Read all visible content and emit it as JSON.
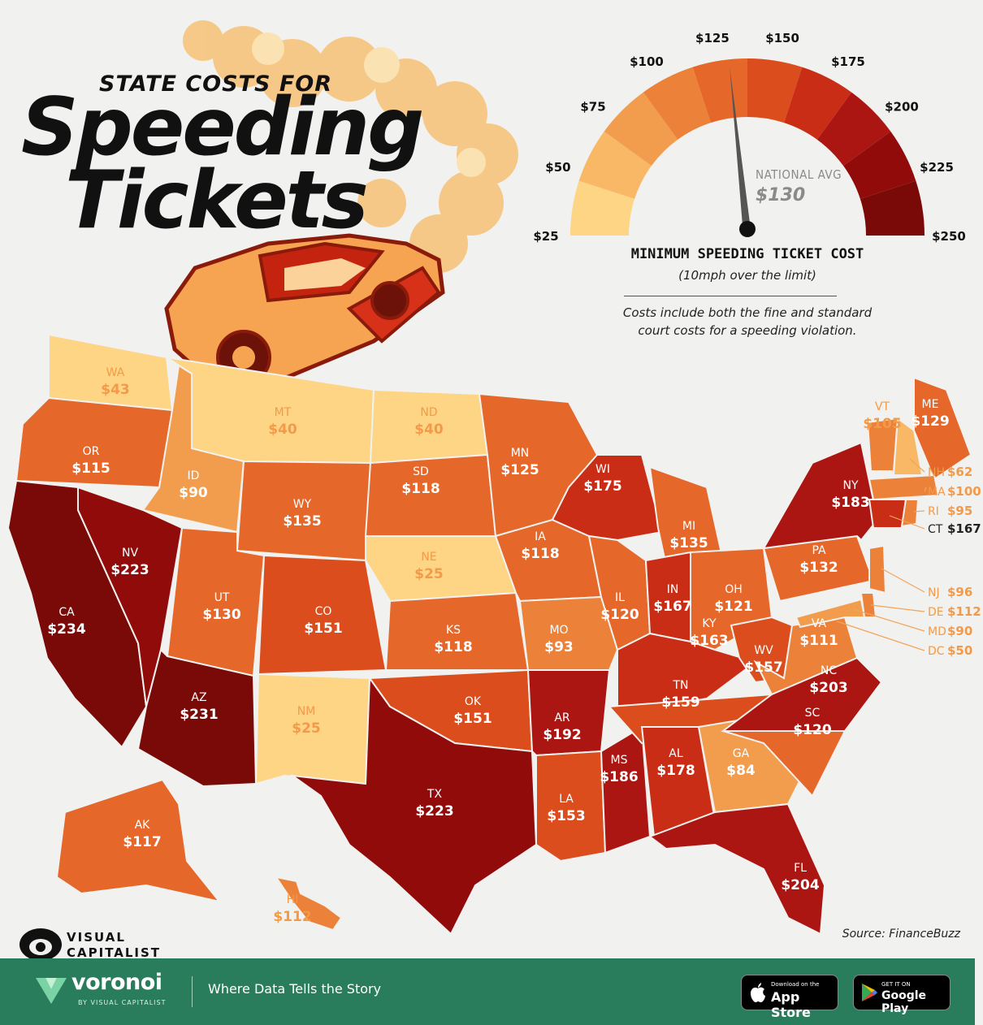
{
  "header": {
    "kicker": "STATE COSTS FOR",
    "title_line1": "Speeding",
    "title_line2": "Tickets"
  },
  "gauge": {
    "title": "MINIMUM SPEEDING TICKET COST",
    "subtitle": "(10mph over the limit)",
    "note_line1": "Costs include both the fine and standard",
    "note_line2": "court costs for a speeding violation.",
    "national_avg_label": "NATIONAL AVG",
    "national_avg_value": "$130",
    "national_avg": 130,
    "min": 25,
    "max": 250,
    "ticks": [
      "$25",
      "$50",
      "$75",
      "$100",
      "$125",
      "$150",
      "$175",
      "$200",
      "$225",
      "$250"
    ],
    "colors": [
      "#fdd585",
      "#f8b865",
      "#f29d4d",
      "#ec813a",
      "#e5672a",
      "#db4d1d",
      "#c92d16",
      "#ac1612",
      "#920b0b",
      "#7a0a07"
    ]
  },
  "chart_data": {
    "type": "choropleth",
    "unit": "$",
    "states": [
      {
        "code": "WA",
        "value": 43
      },
      {
        "code": "OR",
        "value": 115
      },
      {
        "code": "CA",
        "value": 234
      },
      {
        "code": "ID",
        "value": 90
      },
      {
        "code": "NV",
        "value": 223
      },
      {
        "code": "MT",
        "value": 40
      },
      {
        "code": "WY",
        "value": 135
      },
      {
        "code": "UT",
        "value": 130
      },
      {
        "code": "AZ",
        "value": 231
      },
      {
        "code": "CO",
        "value": 151
      },
      {
        "code": "NM",
        "value": 25
      },
      {
        "code": "ND",
        "value": 40
      },
      {
        "code": "SD",
        "value": 118
      },
      {
        "code": "NE",
        "value": 25
      },
      {
        "code": "KS",
        "value": 118
      },
      {
        "code": "OK",
        "value": 151
      },
      {
        "code": "TX",
        "value": 223
      },
      {
        "code": "MN",
        "value": 125
      },
      {
        "code": "IA",
        "value": 118
      },
      {
        "code": "MO",
        "value": 93
      },
      {
        "code": "AR",
        "value": 192
      },
      {
        "code": "LA",
        "value": 153
      },
      {
        "code": "WI",
        "value": 175
      },
      {
        "code": "IL",
        "value": 120
      },
      {
        "code": "MS",
        "value": 186
      },
      {
        "code": "MI",
        "value": 135
      },
      {
        "code": "IN",
        "value": 167
      },
      {
        "code": "KY",
        "value": 163
      },
      {
        "code": "TN",
        "value": 159
      },
      {
        "code": "AL",
        "value": 178
      },
      {
        "code": "OH",
        "value": 121
      },
      {
        "code": "WV",
        "value": 157
      },
      {
        "code": "VA",
        "value": 111
      },
      {
        "code": "NC",
        "value": 203
      },
      {
        "code": "SC",
        "value": 120
      },
      {
        "code": "GA",
        "value": 84
      },
      {
        "code": "FL",
        "value": 204
      },
      {
        "code": "PA",
        "value": 132
      },
      {
        "code": "NY",
        "value": 183
      },
      {
        "code": "VT",
        "value": 105
      },
      {
        "code": "ME",
        "value": 129
      },
      {
        "code": "NH",
        "value": 62
      },
      {
        "code": "MA",
        "value": 100
      },
      {
        "code": "RI",
        "value": 95
      },
      {
        "code": "CT",
        "value": 167
      },
      {
        "code": "NJ",
        "value": 96
      },
      {
        "code": "DE",
        "value": 112
      },
      {
        "code": "MD",
        "value": 90
      },
      {
        "code": "DC",
        "value": 50
      },
      {
        "code": "AK",
        "value": 117
      },
      {
        "code": "HI",
        "value": 112
      }
    ]
  },
  "branding": {
    "vc_line1": "VISUAL",
    "vc_line2": "CAPITALIST",
    "source": "Source: FinanceBuzz"
  },
  "footer": {
    "brand": "voronoi",
    "brand_by": "BY VISUAL CAPITALIST",
    "tagline": "Where Data Tells the Story",
    "appstore_small": "Download on the",
    "appstore_big": "App Store",
    "gplay_small": "GET IT ON",
    "gplay_big": "Google Play",
    "bg_color": "#2a7d5c"
  }
}
